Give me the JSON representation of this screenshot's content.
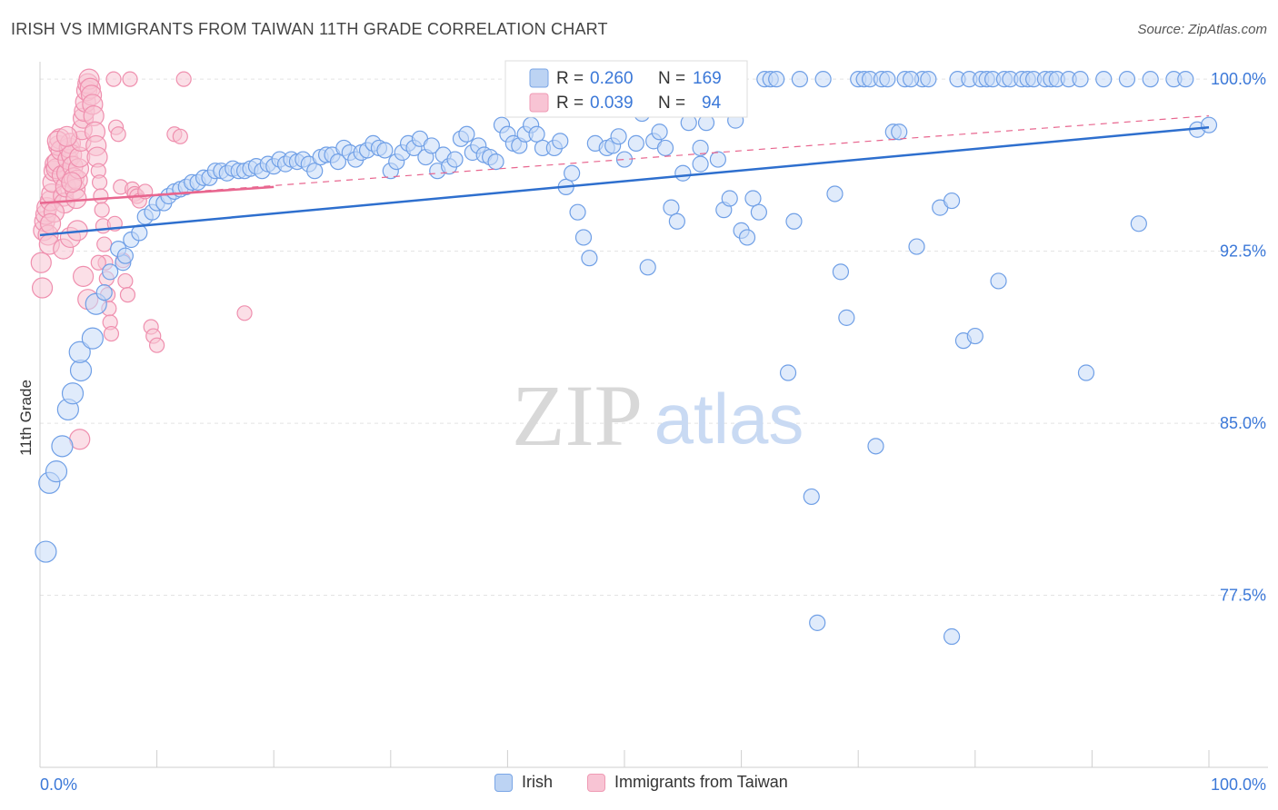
{
  "header": {
    "title": "IRISH VS IMMIGRANTS FROM TAIWAN 11TH GRADE CORRELATION CHART",
    "source": "Source: ZipAtlas.com"
  },
  "watermark": {
    "zip": "ZIP",
    "atlas": "atlas"
  },
  "legend": {
    "rows": [
      {
        "r_label": "R =",
        "r_value": "0.260",
        "n_label": "N =",
        "n_value": "169"
      },
      {
        "r_label": "R =",
        "r_value": "0.039",
        "n_label": "N =",
        "n_value": "94"
      }
    ],
    "bottom": [
      "Irish",
      "Immigrants from Taiwan"
    ]
  },
  "chart_data": {
    "type": "scatter",
    "title": "IRISH VS IMMIGRANTS FROM TAIWAN 11TH GRADE CORRELATION CHART",
    "ylabel": "11th Grade",
    "xlabel": "",
    "xlim": [
      0,
      100
    ],
    "ylim": [
      70.0,
      100.6
    ],
    "x_tick_labels": [
      "0.0%",
      "100.0%"
    ],
    "y_ticks": [
      100.0,
      92.5,
      85.0,
      77.5
    ],
    "y_tick_labels": [
      "100.0%",
      "92.5%",
      "85.0%",
      "77.5%"
    ],
    "grid": true,
    "legend_position": "top-center",
    "colors": {
      "irish": "#6f9fe6",
      "irish_line": "#2e6fce",
      "taiwan": "#f19bb6",
      "taiwan_line": "#e8668f"
    },
    "series": [
      {
        "name": "Irish",
        "r": 0.26,
        "n": 169,
        "trend": {
          "x": [
            0,
            100
          ],
          "y": [
            93.2,
            97.9
          ]
        },
        "points": [
          [
            0.5,
            79.4
          ],
          [
            0.8,
            82.4
          ],
          [
            1.4,
            82.9
          ],
          [
            1.9,
            84.0
          ],
          [
            2.4,
            85.6
          ],
          [
            2.8,
            86.3
          ],
          [
            3.5,
            87.3
          ],
          [
            3.4,
            88.1
          ],
          [
            4.5,
            88.7
          ],
          [
            4.8,
            90.2
          ],
          [
            5.5,
            90.7
          ],
          [
            6.0,
            91.6
          ],
          [
            7.1,
            92.0
          ],
          [
            6.7,
            92.6
          ],
          [
            7.3,
            92.3
          ],
          [
            7.8,
            93.0
          ],
          [
            8.5,
            93.3
          ],
          [
            9.0,
            94.0
          ],
          [
            9.6,
            94.2
          ],
          [
            10.0,
            94.6
          ],
          [
            10.6,
            94.6
          ],
          [
            11.0,
            94.9
          ],
          [
            11.5,
            95.1
          ],
          [
            12.0,
            95.2
          ],
          [
            12.5,
            95.3
          ],
          [
            13.0,
            95.5
          ],
          [
            13.5,
            95.5
          ],
          [
            14.0,
            95.7
          ],
          [
            14.5,
            95.7
          ],
          [
            15.0,
            96.0
          ],
          [
            15.5,
            96.0
          ],
          [
            16.0,
            95.9
          ],
          [
            16.5,
            96.1
          ],
          [
            17.0,
            96.0
          ],
          [
            17.5,
            96.0
          ],
          [
            18.0,
            96.1
          ],
          [
            18.5,
            96.2
          ],
          [
            19.0,
            96.0
          ],
          [
            19.5,
            96.3
          ],
          [
            20.0,
            96.2
          ],
          [
            20.5,
            96.5
          ],
          [
            21.0,
            96.3
          ],
          [
            21.5,
            96.5
          ],
          [
            22.0,
            96.4
          ],
          [
            22.5,
            96.5
          ],
          [
            23.0,
            96.3
          ],
          [
            23.5,
            96.0
          ],
          [
            24.0,
            96.6
          ],
          [
            24.5,
            96.7
          ],
          [
            25.0,
            96.7
          ],
          [
            25.5,
            96.4
          ],
          [
            26.0,
            97.0
          ],
          [
            26.5,
            96.8
          ],
          [
            27.0,
            96.5
          ],
          [
            27.5,
            96.8
          ],
          [
            28.0,
            96.9
          ],
          [
            28.5,
            97.2
          ],
          [
            29.0,
            97.0
          ],
          [
            29.5,
            96.9
          ],
          [
            30.0,
            96.0
          ],
          [
            30.5,
            96.4
          ],
          [
            31.0,
            96.8
          ],
          [
            31.5,
            97.2
          ],
          [
            32.0,
            97.0
          ],
          [
            32.5,
            97.4
          ],
          [
            33.0,
            96.6
          ],
          [
            33.5,
            97.1
          ],
          [
            34.0,
            96.0
          ],
          [
            34.5,
            96.7
          ],
          [
            35.0,
            96.2
          ],
          [
            35.5,
            96.5
          ],
          [
            36.0,
            97.4
          ],
          [
            36.5,
            97.6
          ],
          [
            37.0,
            96.8
          ],
          [
            37.5,
            97.1
          ],
          [
            38.0,
            96.7
          ],
          [
            38.5,
            96.6
          ],
          [
            39.0,
            96.4
          ],
          [
            39.5,
            98.0
          ],
          [
            40.0,
            97.6
          ],
          [
            40.5,
            97.2
          ],
          [
            41.0,
            97.1
          ],
          [
            41.5,
            97.6
          ],
          [
            42.0,
            98.0
          ],
          [
            42.5,
            97.6
          ],
          [
            43.0,
            97.0
          ],
          [
            43.5,
            99.2
          ],
          [
            44.0,
            97.0
          ],
          [
            44.5,
            97.3
          ],
          [
            45.0,
            95.3
          ],
          [
            45.5,
            95.9
          ],
          [
            46.0,
            94.2
          ],
          [
            46.5,
            93.1
          ],
          [
            47.0,
            92.2
          ],
          [
            47.5,
            97.2
          ],
          [
            48.0,
            99.1
          ],
          [
            48.5,
            97.0
          ],
          [
            49.0,
            97.1
          ],
          [
            49.5,
            97.5
          ],
          [
            50.0,
            96.5
          ],
          [
            50.5,
            99.2
          ],
          [
            51.0,
            97.2
          ],
          [
            51.5,
            98.5
          ],
          [
            52.0,
            91.8
          ],
          [
            52.5,
            97.3
          ],
          [
            53.0,
            97.7
          ],
          [
            53.5,
            97.0
          ],
          [
            54.0,
            94.4
          ],
          [
            54.5,
            93.8
          ],
          [
            55.0,
            95.9
          ],
          [
            55.5,
            98.1
          ],
          [
            56.0,
            99.3
          ],
          [
            56.5,
            97.0
          ],
          [
            57.0,
            98.1
          ],
          [
            57.5,
            100.0
          ],
          [
            58.0,
            96.5
          ],
          [
            58.5,
            94.3
          ],
          [
            59.0,
            94.8
          ],
          [
            59.5,
            98.2
          ],
          [
            60.0,
            93.4
          ],
          [
            60.5,
            93.1
          ],
          [
            61.0,
            94.8
          ],
          [
            61.5,
            94.2
          ],
          [
            62.0,
            100.0
          ],
          [
            62.5,
            100.0
          ],
          [
            63.0,
            100.0
          ],
          [
            64.0,
            87.2
          ],
          [
            64.5,
            93.8
          ],
          [
            65.0,
            100.0
          ],
          [
            66.0,
            81.8
          ],
          [
            66.5,
            76.3
          ],
          [
            67.0,
            100.0
          ],
          [
            68.0,
            95.0
          ],
          [
            68.5,
            91.6
          ],
          [
            69.0,
            89.6
          ],
          [
            70.0,
            100.0
          ],
          [
            70.5,
            100.0
          ],
          [
            71.0,
            100.0
          ],
          [
            71.5,
            84.0
          ],
          [
            72.0,
            100.0
          ],
          [
            72.5,
            100.0
          ],
          [
            73.0,
            97.7
          ],
          [
            73.5,
            97.7
          ],
          [
            74.0,
            100.0
          ],
          [
            75.0,
            92.7
          ],
          [
            75.5,
            100.0
          ],
          [
            76.0,
            100.0
          ],
          [
            77.0,
            94.4
          ],
          [
            78.0,
            94.7
          ],
          [
            78.5,
            100.0
          ],
          [
            79.0,
            88.6
          ],
          [
            79.5,
            100.0
          ],
          [
            80.0,
            88.8
          ],
          [
            80.5,
            100.0
          ],
          [
            81.0,
            100.0
          ],
          [
            81.5,
            100.0
          ],
          [
            82.0,
            91.2
          ],
          [
            82.5,
            100.0
          ],
          [
            83.0,
            100.0
          ],
          [
            84.0,
            100.0
          ],
          [
            84.5,
            100.0
          ],
          [
            85.0,
            100.0
          ],
          [
            86.0,
            100.0
          ],
          [
            86.5,
            100.0
          ],
          [
            87.0,
            100.0
          ],
          [
            88.0,
            100.0
          ],
          [
            89.0,
            100.0
          ],
          [
            89.5,
            87.2
          ],
          [
            91.0,
            100.0
          ],
          [
            93.0,
            100.0
          ],
          [
            94.0,
            93.7
          ],
          [
            95.0,
            100.0
          ],
          [
            97.0,
            100.0
          ],
          [
            99.0,
            97.8
          ],
          [
            100.0,
            98.0
          ],
          [
            56.5,
            96.3
          ],
          [
            78.0,
            75.7
          ],
          [
            74.5,
            100.0
          ],
          [
            98.0,
            100.0
          ]
        ]
      },
      {
        "name": "Immigrants from Taiwan",
        "r": 0.039,
        "n": 94,
        "trend": {
          "x": [
            0,
            20
          ],
          "y": [
            94.6,
            95.3
          ]
        },
        "trend_ext": {
          "x": [
            0,
            100
          ],
          "y": [
            94.6,
            98.4
          ]
        },
        "points": [
          [
            0.1,
            92.0
          ],
          [
            0.2,
            90.9
          ],
          [
            0.3,
            93.4
          ],
          [
            0.4,
            93.8
          ],
          [
            0.5,
            94.1
          ],
          [
            0.6,
            94.4
          ],
          [
            0.7,
            93.2
          ],
          [
            0.8,
            92.8
          ],
          [
            0.9,
            94.7
          ],
          [
            1.0,
            95.0
          ],
          [
            1.1,
            95.5
          ],
          [
            1.2,
            96.0
          ],
          [
            1.3,
            96.3
          ],
          [
            1.4,
            96.1
          ],
          [
            1.5,
            96.4
          ],
          [
            1.6,
            97.1
          ],
          [
            1.7,
            97.4
          ],
          [
            1.8,
            96.9
          ],
          [
            1.9,
            95.8
          ],
          [
            2.0,
            94.9
          ],
          [
            2.1,
            94.6
          ],
          [
            2.2,
            95.3
          ],
          [
            2.3,
            95.9
          ],
          [
            2.4,
            96.5
          ],
          [
            2.5,
            97.0
          ],
          [
            2.6,
            97.2
          ],
          [
            2.7,
            96.7
          ],
          [
            2.8,
            96.2
          ],
          [
            2.9,
            95.7
          ],
          [
            3.0,
            95.2
          ],
          [
            3.1,
            94.8
          ],
          [
            3.2,
            95.6
          ],
          [
            3.3,
            96.1
          ],
          [
            3.4,
            96.6
          ],
          [
            3.5,
            97.3
          ],
          [
            3.6,
            97.8
          ],
          [
            3.7,
            98.3
          ],
          [
            3.8,
            98.6
          ],
          [
            3.9,
            99.0
          ],
          [
            4.0,
            99.5
          ],
          [
            4.1,
            99.8
          ],
          [
            4.2,
            100.0
          ],
          [
            4.3,
            99.6
          ],
          [
            4.4,
            99.3
          ],
          [
            4.5,
            98.9
          ],
          [
            4.6,
            98.4
          ],
          [
            4.7,
            97.7
          ],
          [
            4.8,
            97.1
          ],
          [
            4.9,
            96.6
          ],
          [
            5.0,
            96.0
          ],
          [
            5.1,
            95.5
          ],
          [
            5.2,
            94.9
          ],
          [
            5.3,
            94.3
          ],
          [
            5.4,
            93.6
          ],
          [
            5.5,
            92.8
          ],
          [
            5.6,
            92.0
          ],
          [
            5.7,
            91.3
          ],
          [
            5.8,
            90.6
          ],
          [
            5.9,
            90.0
          ],
          [
            6.0,
            89.4
          ],
          [
            6.1,
            88.9
          ],
          [
            6.3,
            100.0
          ],
          [
            6.5,
            97.9
          ],
          [
            6.7,
            97.6
          ],
          [
            6.9,
            95.3
          ],
          [
            7.1,
            92.1
          ],
          [
            7.3,
            91.2
          ],
          [
            7.5,
            90.6
          ],
          [
            7.7,
            100.0
          ],
          [
            7.9,
            95.2
          ],
          [
            8.1,
            95.0
          ],
          [
            8.3,
            94.9
          ],
          [
            8.5,
            94.7
          ],
          [
            9.5,
            89.2
          ],
          [
            9.7,
            88.8
          ],
          [
            10.0,
            88.4
          ],
          [
            11.5,
            97.6
          ],
          [
            12.0,
            97.5
          ],
          [
            12.3,
            100.0
          ],
          [
            17.5,
            89.8
          ],
          [
            1.2,
            94.2
          ],
          [
            0.9,
            93.7
          ],
          [
            2.0,
            92.6
          ],
          [
            2.6,
            93.1
          ],
          [
            3.2,
            93.4
          ],
          [
            3.7,
            91.4
          ],
          [
            4.1,
            90.4
          ],
          [
            5.0,
            92.0
          ],
          [
            6.4,
            93.7
          ],
          [
            1.5,
            97.3
          ],
          [
            2.3,
            97.5
          ],
          [
            2.7,
            95.5
          ],
          [
            3.4,
            84.3
          ],
          [
            9.0,
            95.1
          ]
        ]
      }
    ]
  }
}
